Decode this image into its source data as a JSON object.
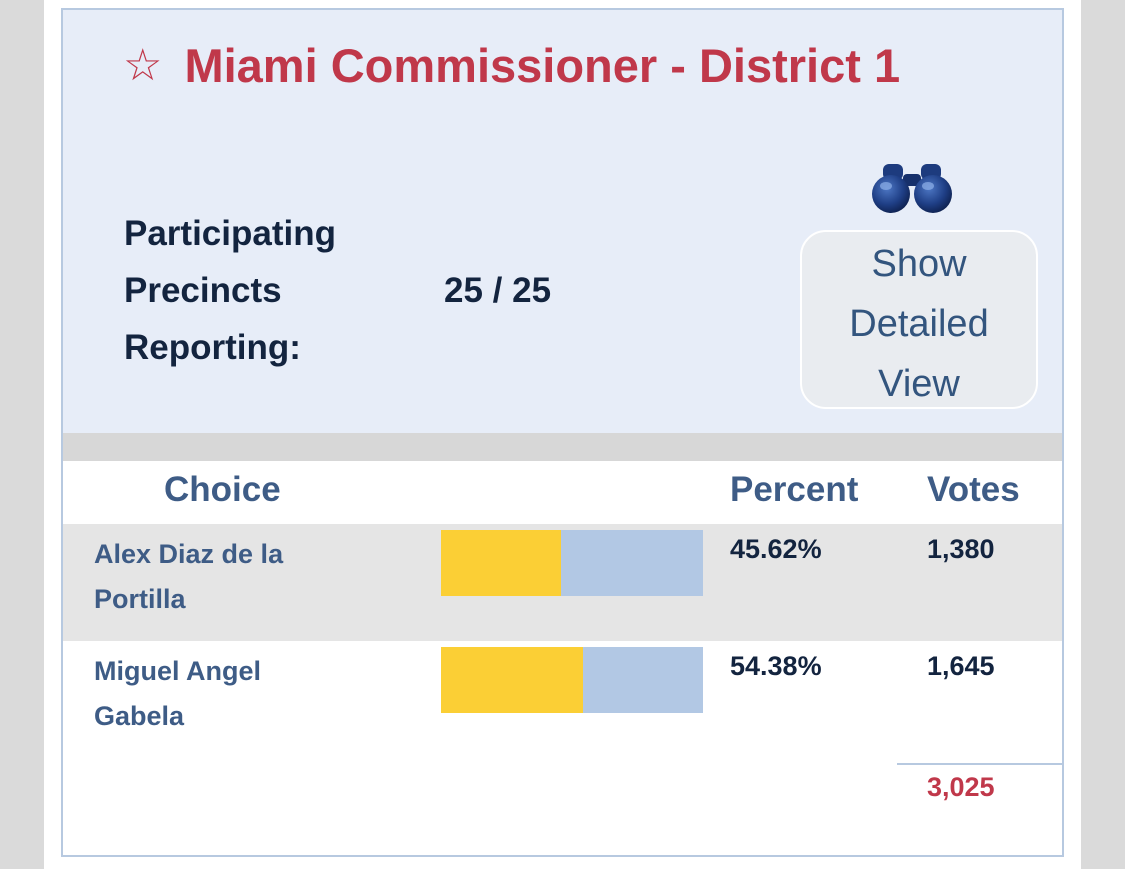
{
  "contest": {
    "title": "Miami Commissioner - District 1",
    "title_icon": "star-outline-icon"
  },
  "precincts": {
    "label_lines": [
      "Participating",
      "Precincts",
      "Reporting:"
    ],
    "value": "25 / 25"
  },
  "detail_button": {
    "icon": "binoculars-icon",
    "label_lines": [
      "Show",
      "Detailed",
      "View"
    ]
  },
  "table": {
    "headers": {
      "choice": "Choice",
      "percent": "Percent",
      "votes": "Votes"
    },
    "rows": [
      {
        "name_lines": [
          "Alex Diaz de la",
          "Portilla"
        ],
        "percent": "45.62%",
        "percent_value": 45.62,
        "votes": "1,380"
      },
      {
        "name_lines": [
          "Miguel Angel",
          "Gabela"
        ],
        "percent": "54.38%",
        "percent_value": 54.38,
        "votes": "1,645"
      }
    ],
    "total_votes": "3,025"
  },
  "colors": {
    "title": "#c0384a",
    "header_bg": "#e7edf8",
    "bar_fill": "#fbcf35",
    "bar_track": "#b2c8e4",
    "heading_text": "#3e5c86",
    "body_text": "#13243f",
    "total_text": "#c0384a"
  }
}
